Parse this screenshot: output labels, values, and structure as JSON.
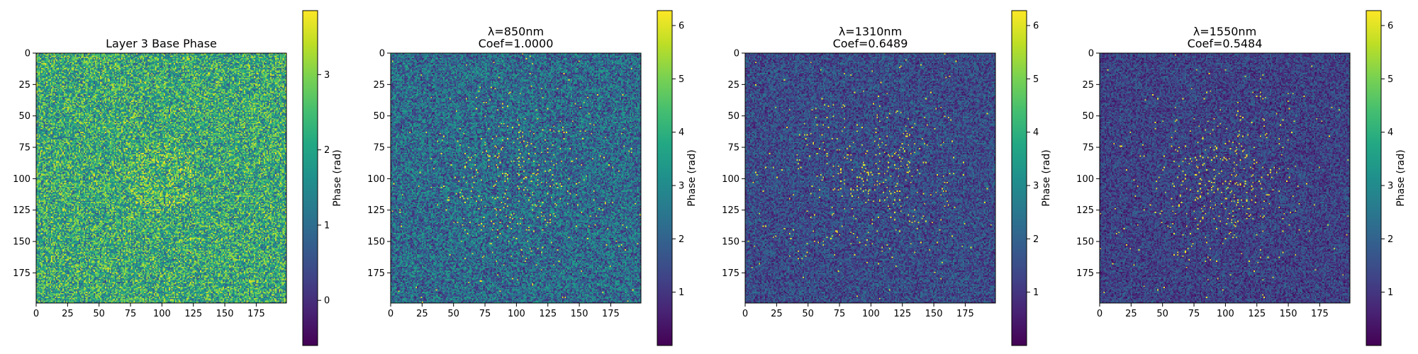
{
  "colors": {
    "viridis_low": "#440154",
    "viridis_high": "#fde725",
    "frame": "#000000"
  },
  "chart_data": [
    {
      "type": "heatmap",
      "title": "Layer 3 Base Phase",
      "title_lines": [
        "Layer 3 Base Phase"
      ],
      "colormap": "viridis",
      "grid_size": 200,
      "xticks": [
        0,
        25,
        50,
        75,
        100,
        125,
        150,
        175
      ],
      "yticks": [
        0,
        25,
        50,
        75,
        100,
        125,
        150,
        175
      ],
      "xlim": [
        0,
        199
      ],
      "ylim": [
        199,
        0
      ],
      "colorbar": {
        "label": "Phase (rad)",
        "range": [
          -0.6,
          3.85
        ],
        "ticks": [
          0,
          1,
          2,
          3
        ]
      },
      "texture": {
        "mean": 2.1,
        "spread": 1.4,
        "center_pattern": "speckle",
        "center": [
          100,
          100
        ]
      }
    },
    {
      "type": "heatmap",
      "title": "λ=850nm Coef=1.0000",
      "title_lines": [
        "λ=850nm",
        "Coef=1.0000"
      ],
      "wavelength": "850nm",
      "coef": 1.0,
      "colormap": "viridis",
      "grid_size": 200,
      "xticks": [
        0,
        25,
        50,
        75,
        100,
        125,
        150,
        175
      ],
      "yticks": [
        0,
        25,
        50,
        75,
        100,
        125,
        150,
        175
      ],
      "xlim": [
        0,
        199
      ],
      "ylim": [
        199,
        0
      ],
      "colorbar": {
        "label": "Phase (rad)",
        "range": [
          0.0,
          6.28
        ],
        "ticks": [
          1,
          2,
          3,
          4,
          5,
          6
        ]
      },
      "texture": {
        "mean": 2.2,
        "spread": 1.5,
        "center_pattern": "bright-dots",
        "center": [
          100,
          100
        ]
      }
    },
    {
      "type": "heatmap",
      "title": "λ=1310nm Coef=0.6489",
      "title_lines": [
        "λ=1310nm",
        "Coef=0.6489"
      ],
      "wavelength": "1310nm",
      "coef": 0.6489,
      "colormap": "viridis",
      "grid_size": 200,
      "xticks": [
        0,
        25,
        50,
        75,
        100,
        125,
        150,
        175
      ],
      "yticks": [
        0,
        25,
        50,
        75,
        100,
        125,
        150,
        175
      ],
      "xlim": [
        0,
        199
      ],
      "ylim": [
        199,
        0
      ],
      "colorbar": {
        "label": "Phase (rad)",
        "range": [
          0.0,
          6.28
        ],
        "ticks": [
          1,
          2,
          3,
          4,
          5,
          6
        ]
      },
      "texture": {
        "mean": 1.45,
        "spread": 1.0,
        "center_pattern": "bright-dots",
        "center": [
          100,
          100
        ]
      }
    },
    {
      "type": "heatmap",
      "title": "λ=1550nm Coef=0.5484",
      "title_lines": [
        "λ=1550nm",
        "Coef=0.5484"
      ],
      "wavelength": "1550nm",
      "coef": 0.5484,
      "colormap": "viridis",
      "grid_size": 200,
      "xticks": [
        0,
        25,
        50,
        75,
        100,
        125,
        150,
        175
      ],
      "yticks": [
        0,
        25,
        50,
        75,
        100,
        125,
        150,
        175
      ],
      "xlim": [
        0,
        199
      ],
      "ylim": [
        199,
        0
      ],
      "colorbar": {
        "label": "Phase (rad)",
        "range": [
          0.0,
          6.28
        ],
        "ticks": [
          1,
          2,
          3,
          4,
          5,
          6
        ]
      },
      "texture": {
        "mean": 1.25,
        "spread": 0.9,
        "center_pattern": "bright-dots",
        "center": [
          100,
          100
        ]
      }
    }
  ]
}
